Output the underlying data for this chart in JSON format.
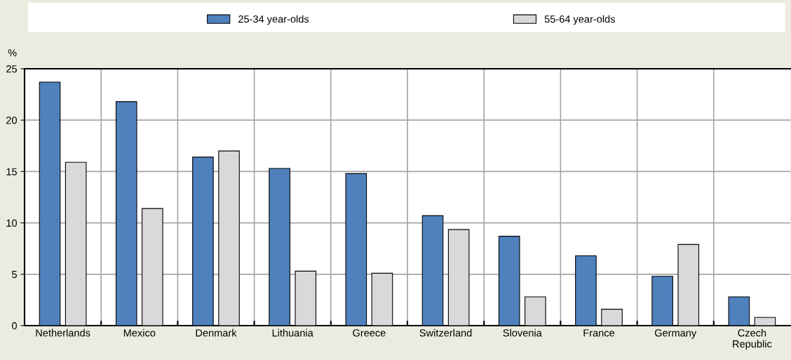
{
  "chart_data": {
    "type": "bar",
    "ylabel": "%",
    "categories": [
      "Netherlands",
      "Mexico",
      "Denmark",
      "Lithuania",
      "Greece",
      "Switzerland",
      "Slovenia",
      "France",
      "Germany",
      "Czech\nRepublic"
    ],
    "series": [
      {
        "name": "25-34 year-olds",
        "color": "#4f81bd",
        "values": [
          23.7,
          21.8,
          16.4,
          15.3,
          14.8,
          10.7,
          8.7,
          6.8,
          4.8,
          2.8
        ]
      },
      {
        "name": "55-64 year-olds",
        "color": "#d9d9d9",
        "values": [
          15.9,
          11.4,
          17.0,
          5.3,
          5.1,
          9.35,
          2.8,
          1.6,
          7.9,
          0.8
        ]
      }
    ],
    "ylim": [
      0,
      25
    ],
    "yticks": [
      0,
      5,
      10,
      15,
      20,
      25
    ],
    "grid": true,
    "legend": "top"
  }
}
